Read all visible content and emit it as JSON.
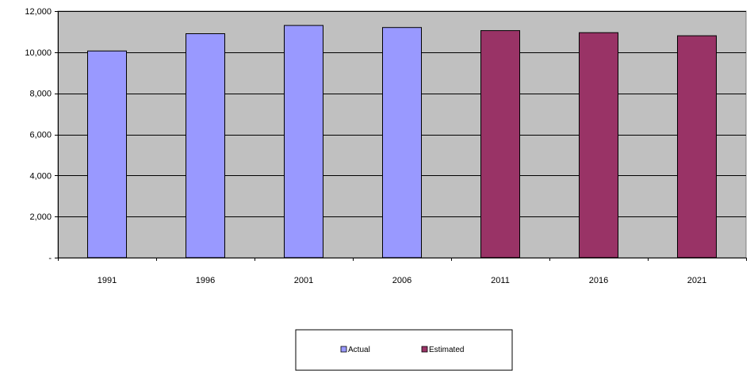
{
  "chart_data": {
    "type": "bar",
    "title": "",
    "xlabel": "",
    "ylabel": "",
    "categories": [
      "1991",
      "1996",
      "2001",
      "2006",
      "2011",
      "2016",
      "2021"
    ],
    "series": [
      {
        "name": "Actual",
        "color": "#9999ff",
        "values": [
          10060,
          10900,
          11300,
          11200,
          null,
          null,
          null
        ]
      },
      {
        "name": "Estimated",
        "color": "#993366",
        "values": [
          null,
          null,
          null,
          null,
          11050,
          10950,
          10800
        ]
      }
    ],
    "ylim": [
      0,
      12000
    ],
    "yticks": [
      0,
      2000,
      4000,
      6000,
      8000,
      10000,
      12000
    ],
    "ytick_labels": [
      "-",
      "2,000",
      "4,000",
      "6,000",
      "8,000",
      "10,000",
      "12,000"
    ],
    "grid": true,
    "plot_background": "#c0c0c0",
    "legend": {
      "position": "bottom-center",
      "entries": [
        "Actual",
        "Estimated"
      ]
    }
  }
}
